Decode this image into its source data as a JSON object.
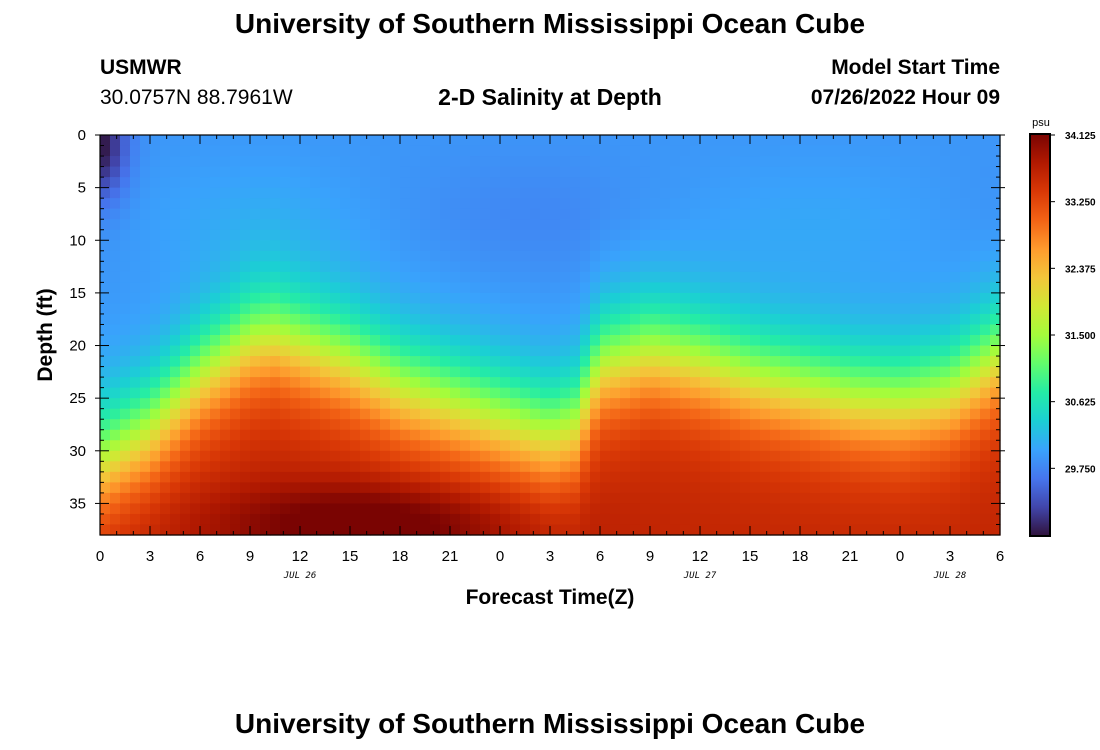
{
  "page": {
    "title": "University of Southern Mississippi Ocean Cube",
    "repeated_title": "University of Southern Mississippi Ocean Cube",
    "station": {
      "name": "USMWR",
      "coordinates": "30.0757N  88.7961W"
    },
    "plot_title": "2-D Salinity at Depth",
    "model_start": {
      "label": "Model Start Time",
      "value": "07/26/2022 Hour 09"
    }
  },
  "colors": {
    "frame": "#000000",
    "colormap": [
      "#30123b",
      "#4145ab",
      "#4675ed",
      "#39a2fc",
      "#1bcfd4",
      "#24eca6",
      "#61fc6c",
      "#a4fc3b",
      "#d1e834",
      "#f3c63a",
      "#fe9b2d",
      "#f36315",
      "#d93806",
      "#b11901",
      "#7a0402"
    ]
  },
  "chart_data": {
    "type": "heatmap",
    "title": "2-D Salinity at Depth",
    "xlabel": "Forecast Time(Z)",
    "ylabel": "Depth (ft)",
    "x_range_hours": [
      0,
      54
    ],
    "y_range_ft": [
      0,
      38
    ],
    "y_inverted": true,
    "x_tick_labels": [
      "0",
      "3",
      "6",
      "9",
      "12",
      "15",
      "18",
      "21",
      "0",
      "3",
      "6",
      "9",
      "12",
      "15",
      "18",
      "21",
      "0",
      "3",
      "6"
    ],
    "x_tick_hours": [
      0,
      3,
      6,
      9,
      12,
      15,
      18,
      21,
      24,
      27,
      30,
      33,
      36,
      39,
      42,
      45,
      48,
      51,
      54
    ],
    "date_labels": [
      {
        "hour": 12,
        "text": "JUL 26"
      },
      {
        "hour": 36,
        "text": "JUL 27"
      },
      {
        "hour": 51,
        "text": "JUL 28"
      }
    ],
    "y_ticks": [
      0,
      5,
      10,
      15,
      20,
      25,
      30,
      35
    ],
    "colorbar": {
      "unit": "psu",
      "min": 28.875,
      "max": 34.125,
      "tick_values": [
        34.125,
        33.25,
        32.375,
        31.5,
        30.625,
        29.75
      ],
      "tick_labels": [
        "34.125",
        "33.250",
        "32.375",
        "31.500",
        "30.625",
        "29.750"
      ]
    },
    "halocline_depth_ft": {
      "hours": [
        0,
        3,
        6,
        9,
        10.5,
        12,
        15,
        18,
        21,
        24,
        27,
        28.5,
        30,
        33,
        36,
        39,
        42,
        45,
        48,
        51,
        54
      ],
      "values": [
        31,
        28,
        23,
        19.5,
        19,
        19.8,
        21.5,
        24,
        25.5,
        27,
        28.5,
        27.5,
        22,
        20.5,
        21.5,
        23,
        24,
        25,
        25.5,
        24.5,
        21
      ]
    },
    "surface_salinity_psu": 29.9,
    "deep_salinity_psu": 33.6,
    "max_salinity": {
      "hour": 16,
      "depth_ft": 37,
      "value_psu": 34.1
    },
    "min_salinity": {
      "hour": 0,
      "depth_ft": 1,
      "value_psu": 28.9
    }
  }
}
